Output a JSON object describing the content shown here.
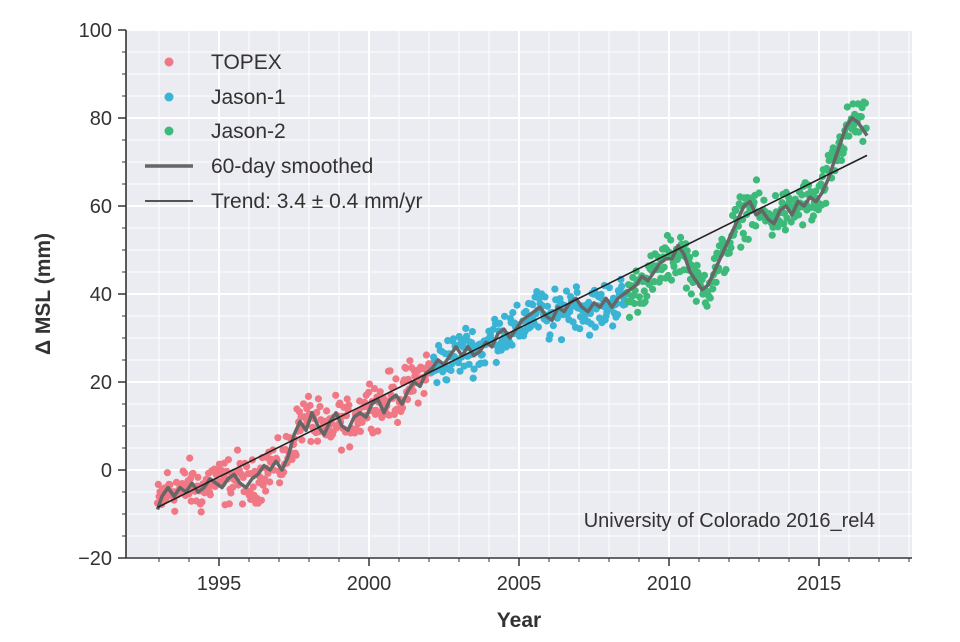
{
  "chart_data": {
    "type": "scatter",
    "xlabel": "Year",
    "ylabel": "Δ MSL (mm)",
    "xlim": [
      1991.9,
      2018.1
    ],
    "ylim": [
      -20,
      100
    ],
    "xticks": [
      1995,
      2000,
      2005,
      2010,
      2015
    ],
    "yticks": [
      -20,
      0,
      20,
      40,
      60,
      80,
      100
    ],
    "grid": true,
    "legend_position": "upper-left",
    "annotation": "University of Colorado 2016_rel4",
    "series": [
      {
        "name": "TOPEX",
        "kind": "points",
        "color": "#f07884",
        "x_range": [
          1992.95,
          2002.1
        ],
        "smoothed_reference": [
          [
            1992.95,
            -8
          ],
          [
            1993.3,
            -4
          ],
          [
            1993.7,
            -5
          ],
          [
            1994.0,
            -3
          ],
          [
            1994.4,
            -5
          ],
          [
            1994.8,
            -2
          ],
          [
            1995.2,
            -3
          ],
          [
            1995.6,
            -1
          ],
          [
            1996.0,
            -4
          ],
          [
            1996.4,
            -1
          ],
          [
            1996.8,
            2
          ],
          [
            1997.0,
            0
          ],
          [
            1997.4,
            5
          ],
          [
            1997.7,
            11
          ],
          [
            1998.0,
            12
          ],
          [
            1998.3,
            10
          ],
          [
            1998.6,
            8
          ],
          [
            1998.9,
            12
          ],
          [
            1999.2,
            10
          ],
          [
            1999.5,
            11
          ],
          [
            1999.8,
            14
          ],
          [
            2000.1,
            16
          ],
          [
            2000.4,
            14
          ],
          [
            2000.7,
            17
          ],
          [
            2001.0,
            16
          ],
          [
            2001.3,
            19
          ],
          [
            2001.6,
            21
          ],
          [
            2002.1,
            23
          ]
        ]
      },
      {
        "name": "Jason-1",
        "kind": "points",
        "color": "#3ab4d4",
        "x_range": [
          2002.1,
          2008.6
        ],
        "smoothed_reference": [
          [
            2002.1,
            23
          ],
          [
            2002.5,
            25
          ],
          [
            2002.9,
            26
          ],
          [
            2003.3,
            28
          ],
          [
            2003.7,
            27
          ],
          [
            2004.1,
            30
          ],
          [
            2004.5,
            32
          ],
          [
            2004.9,
            31
          ],
          [
            2005.3,
            35
          ],
          [
            2005.7,
            36
          ],
          [
            2006.1,
            34
          ],
          [
            2006.5,
            37
          ],
          [
            2006.9,
            38
          ],
          [
            2007.3,
            36
          ],
          [
            2007.7,
            37
          ],
          [
            2008.1,
            38
          ],
          [
            2008.6,
            39
          ]
        ]
      },
      {
        "name": "Jason-2",
        "kind": "points",
        "color": "#3dba7a",
        "x_range": [
          2008.6,
          2016.6
        ],
        "smoothed_reference": [
          [
            2008.6,
            39
          ],
          [
            2008.9,
            41
          ],
          [
            2009.2,
            43
          ],
          [
            2009.5,
            44
          ],
          [
            2009.8,
            47
          ],
          [
            2010.1,
            48
          ],
          [
            2010.4,
            50
          ],
          [
            2010.7,
            46
          ],
          [
            2011.0,
            42
          ],
          [
            2011.3,
            42
          ],
          [
            2011.6,
            46
          ],
          [
            2011.9,
            50
          ],
          [
            2012.2,
            55
          ],
          [
            2012.5,
            58
          ],
          [
            2012.8,
            60
          ],
          [
            2013.1,
            58
          ],
          [
            2013.4,
            57
          ],
          [
            2013.7,
            59
          ],
          [
            2014.0,
            58
          ],
          [
            2014.3,
            60
          ],
          [
            2014.6,
            61
          ],
          [
            2014.9,
            60
          ],
          [
            2015.2,
            64
          ],
          [
            2015.5,
            70
          ],
          [
            2015.8,
            75
          ],
          [
            2016.1,
            79
          ],
          [
            2016.4,
            79
          ],
          [
            2016.6,
            77
          ]
        ]
      },
      {
        "name": "60-day smoothed",
        "kind": "line",
        "color": "#666666",
        "points": [
          [
            1992.95,
            -9
          ],
          [
            1993.1,
            -6
          ],
          [
            1993.3,
            -4
          ],
          [
            1993.5,
            -6
          ],
          [
            1993.7,
            -4
          ],
          [
            1993.9,
            -5
          ],
          [
            1994.1,
            -3
          ],
          [
            1994.3,
            -5
          ],
          [
            1994.5,
            -4
          ],
          [
            1994.7,
            -2
          ],
          [
            1994.9,
            -3
          ],
          [
            1995.1,
            -4
          ],
          [
            1995.3,
            -2
          ],
          [
            1995.5,
            -1
          ],
          [
            1995.7,
            -3
          ],
          [
            1995.9,
            -4
          ],
          [
            1996.1,
            -2
          ],
          [
            1996.3,
            -1
          ],
          [
            1996.5,
            1
          ],
          [
            1996.7,
            0
          ],
          [
            1996.9,
            2
          ],
          [
            1997.1,
            0
          ],
          [
            1997.3,
            3
          ],
          [
            1997.5,
            8
          ],
          [
            1997.7,
            11
          ],
          [
            1997.9,
            9
          ],
          [
            1998.1,
            13
          ],
          [
            1998.3,
            10
          ],
          [
            1998.5,
            8
          ],
          [
            1998.7,
            11
          ],
          [
            1998.9,
            13
          ],
          [
            1999.1,
            10
          ],
          [
            1999.3,
            9
          ],
          [
            1999.5,
            12
          ],
          [
            1999.7,
            13
          ],
          [
            1999.9,
            12
          ],
          [
            2000.1,
            15
          ],
          [
            2000.3,
            16
          ],
          [
            2000.5,
            13
          ],
          [
            2000.7,
            16
          ],
          [
            2000.9,
            17
          ],
          [
            2001.1,
            15
          ],
          [
            2001.3,
            18
          ],
          [
            2001.5,
            20
          ],
          [
            2001.7,
            19
          ],
          [
            2001.9,
            22
          ],
          [
            2002.1,
            23
          ],
          [
            2002.3,
            25
          ],
          [
            2002.5,
            24
          ],
          [
            2002.7,
            26
          ],
          [
            2002.9,
            28
          ],
          [
            2003.1,
            26
          ],
          [
            2003.3,
            28
          ],
          [
            2003.5,
            26
          ],
          [
            2003.7,
            27
          ],
          [
            2003.9,
            29
          ],
          [
            2004.1,
            28
          ],
          [
            2004.3,
            31
          ],
          [
            2004.5,
            32
          ],
          [
            2004.7,
            30
          ],
          [
            2004.9,
            32
          ],
          [
            2005.1,
            34
          ],
          [
            2005.3,
            35
          ],
          [
            2005.5,
            36
          ],
          [
            2005.7,
            37
          ],
          [
            2005.9,
            35
          ],
          [
            2006.1,
            34
          ],
          [
            2006.3,
            37
          ],
          [
            2006.5,
            36
          ],
          [
            2006.7,
            38
          ],
          [
            2006.9,
            39
          ],
          [
            2007.1,
            37
          ],
          [
            2007.3,
            36
          ],
          [
            2007.5,
            38
          ],
          [
            2007.7,
            37
          ],
          [
            2007.9,
            39
          ],
          [
            2008.1,
            37
          ],
          [
            2008.3,
            39
          ],
          [
            2008.5,
            40
          ],
          [
            2008.7,
            41
          ],
          [
            2008.9,
            42
          ],
          [
            2009.1,
            44
          ],
          [
            2009.3,
            43
          ],
          [
            2009.5,
            45
          ],
          [
            2009.7,
            47
          ],
          [
            2009.9,
            48
          ],
          [
            2010.1,
            48
          ],
          [
            2010.3,
            51
          ],
          [
            2010.5,
            49
          ],
          [
            2010.7,
            45
          ],
          [
            2010.9,
            43
          ],
          [
            2011.1,
            41
          ],
          [
            2011.3,
            42
          ],
          [
            2011.5,
            45
          ],
          [
            2011.7,
            48
          ],
          [
            2011.9,
            51
          ],
          [
            2012.1,
            54
          ],
          [
            2012.3,
            57
          ],
          [
            2012.5,
            60
          ],
          [
            2012.7,
            61
          ],
          [
            2012.9,
            58
          ],
          [
            2013.1,
            59
          ],
          [
            2013.3,
            57
          ],
          [
            2013.5,
            56
          ],
          [
            2013.7,
            59
          ],
          [
            2013.9,
            60
          ],
          [
            2014.1,
            58
          ],
          [
            2014.3,
            61
          ],
          [
            2014.5,
            60
          ],
          [
            2014.7,
            62
          ],
          [
            2014.9,
            61
          ],
          [
            2015.1,
            63
          ],
          [
            2015.3,
            66
          ],
          [
            2015.5,
            70
          ],
          [
            2015.7,
            74
          ],
          [
            2015.9,
            78
          ],
          [
            2016.1,
            80
          ],
          [
            2016.3,
            79
          ],
          [
            2016.5,
            77
          ],
          [
            2016.6,
            76
          ]
        ]
      },
      {
        "name": "Trend: 3.4 ± 0.4 mm/yr",
        "kind": "trend",
        "color": "#222222",
        "points": [
          [
            1992.95,
            -8.5
          ],
          [
            2016.6,
            71.5
          ]
        ]
      }
    ]
  }
}
